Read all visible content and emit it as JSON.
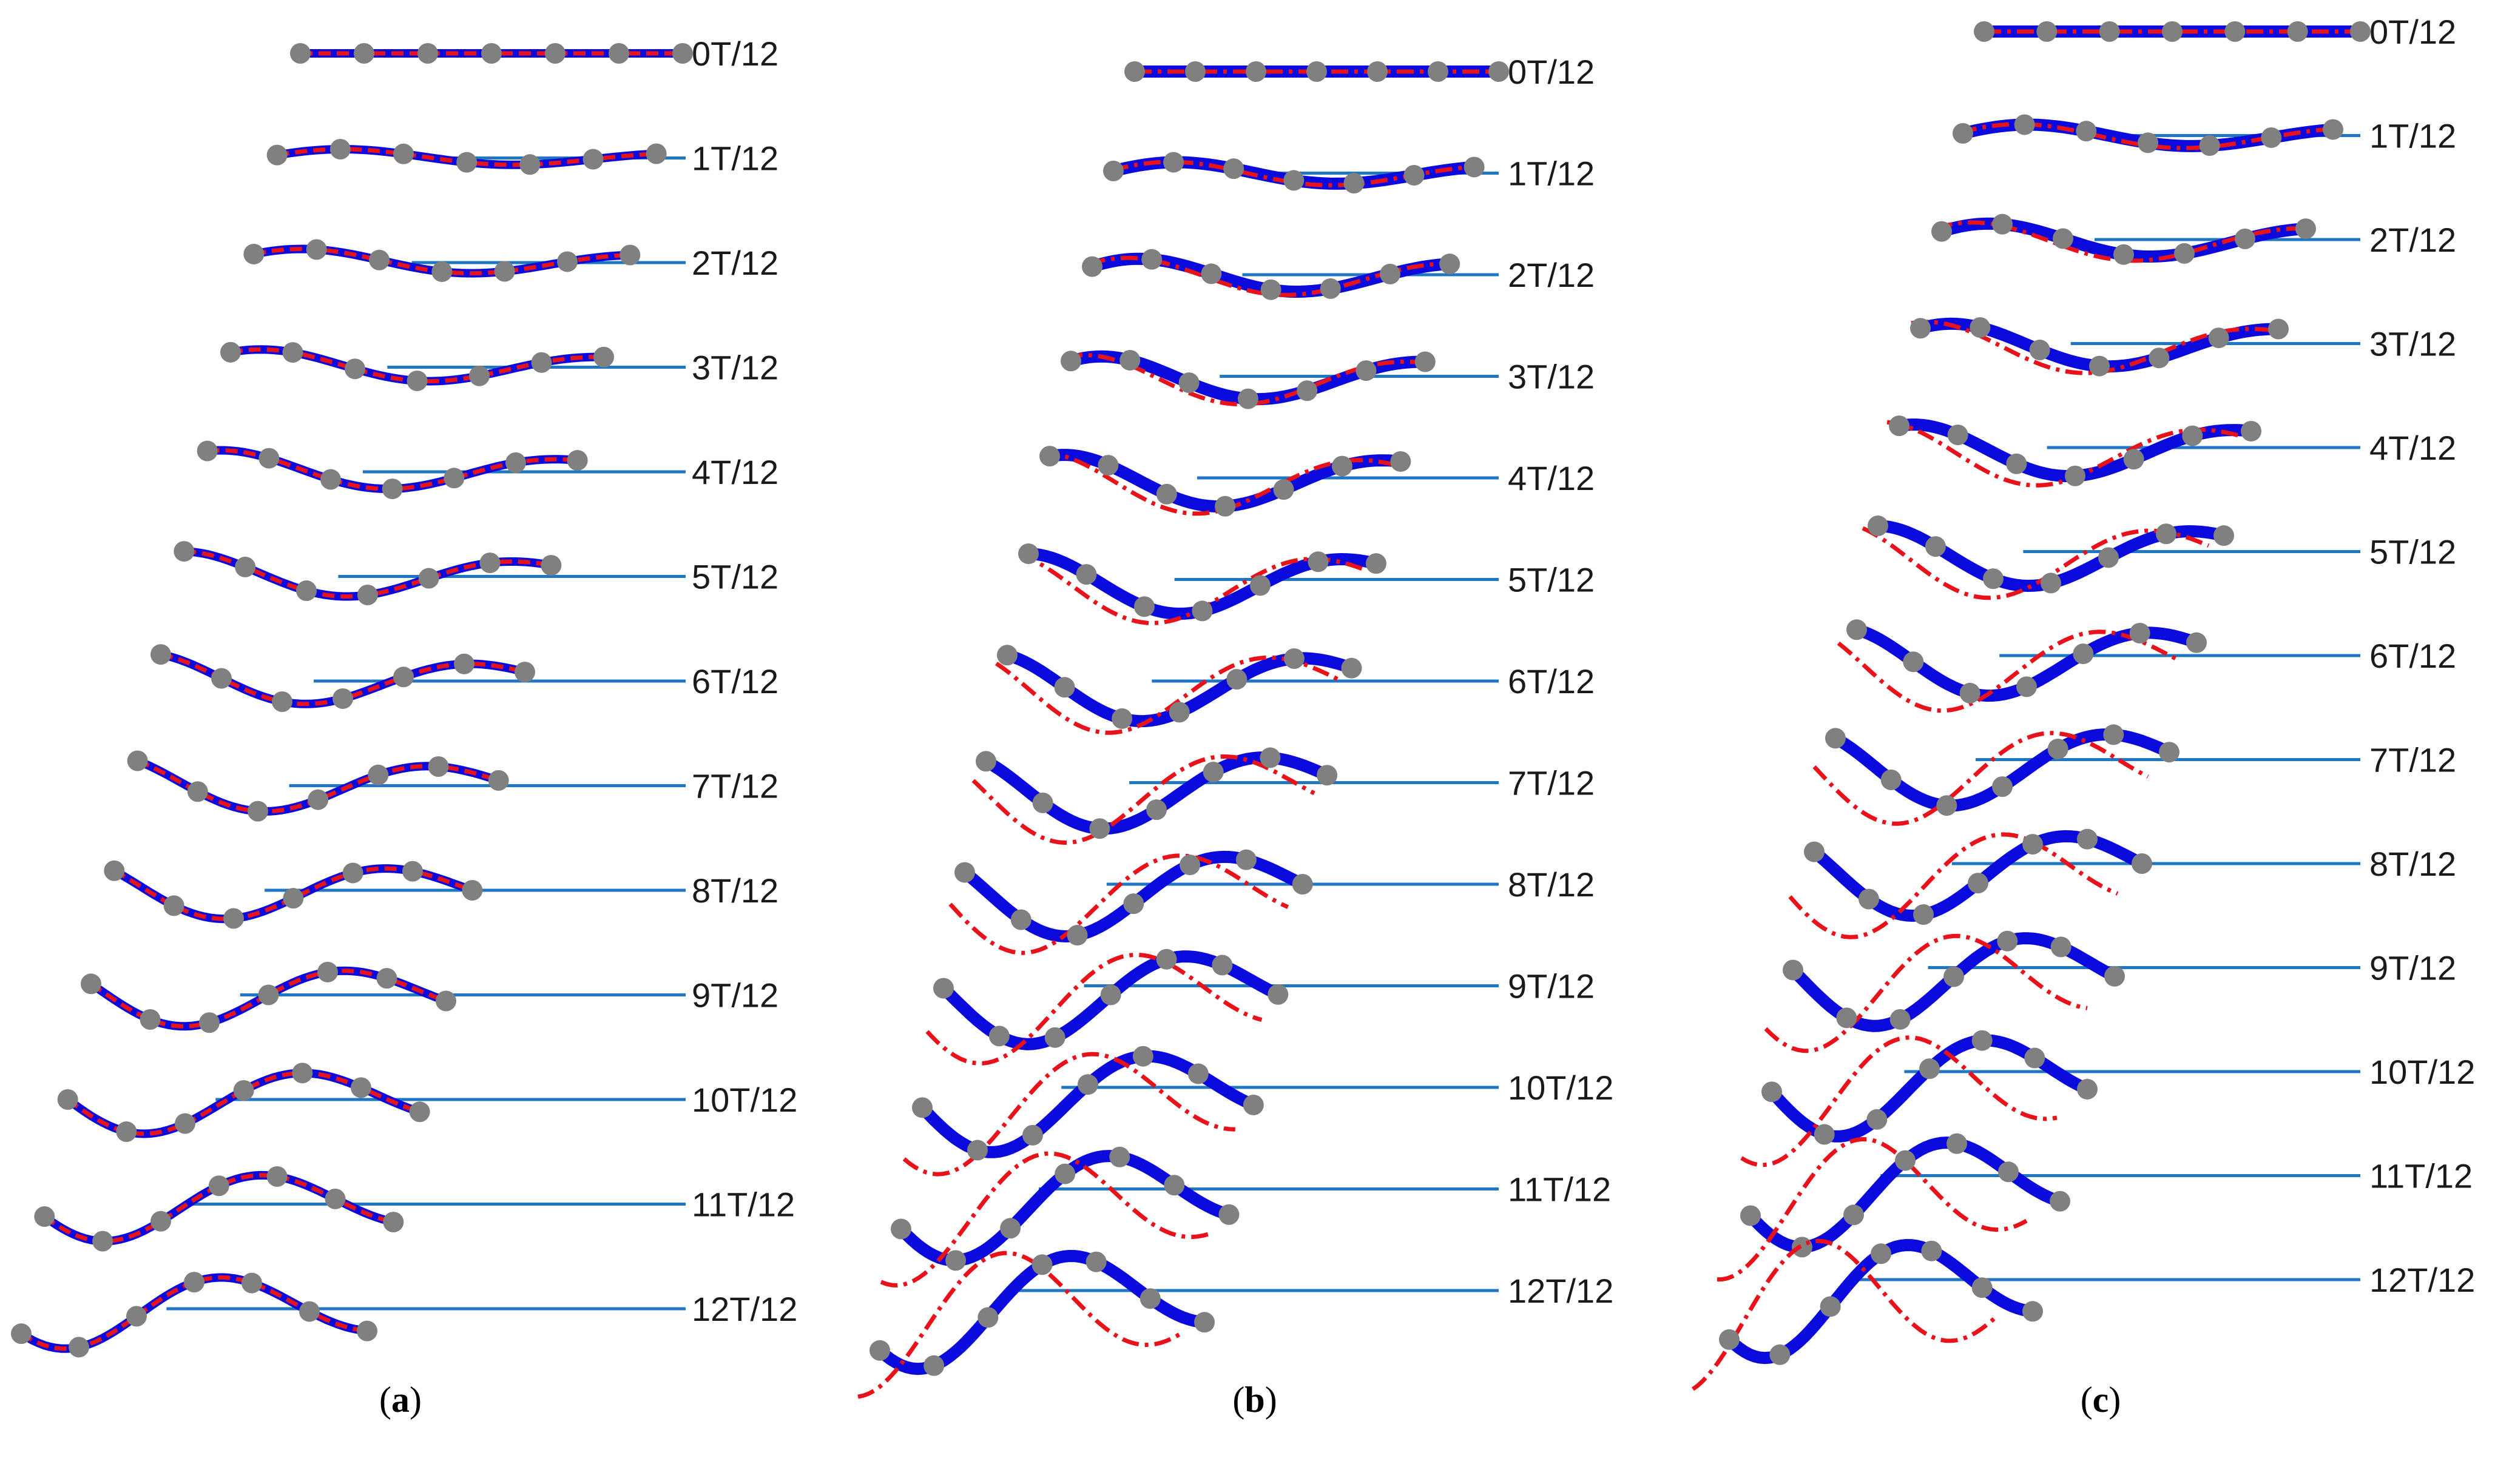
{
  "figure": {
    "panels": [
      {
        "id": "a",
        "caption_open": "(",
        "caption_letter": "a",
        "caption_close": ")"
      },
      {
        "id": "b",
        "caption_open": "(",
        "caption_letter": "b",
        "caption_close": ")"
      },
      {
        "id": "c",
        "caption_open": "(",
        "caption_letter": "c",
        "caption_close": ")"
      }
    ],
    "time_labels": [
      "0T/12",
      "1T/12",
      "2T/12",
      "3T/12",
      "4T/12",
      "5T/12",
      "6T/12",
      "7T/12",
      "8T/12",
      "9T/12",
      "10T/12",
      "11T/12",
      "12T/12"
    ],
    "colors": {
      "reference_line": "#1f77c4",
      "measured_curve": "#0a0adc",
      "model_curve": "#e8121b",
      "marker": "#808080"
    },
    "legend_semantics": {
      "measured_curve": "blue solid thick",
      "model_curve": "red dashed / dash-dot",
      "marker": "grey circles"
    }
  }
}
